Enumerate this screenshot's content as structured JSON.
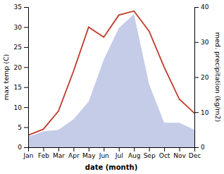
{
  "chart_data": {
    "type": "line",
    "categories": [
      "Jan",
      "Feb",
      "Mar",
      "Apr",
      "May",
      "Jun",
      "Jul",
      "Aug",
      "Sep",
      "Oct",
      "Nov",
      "Dec"
    ],
    "xlabel": "date (month)",
    "ylabel": "max temp (C)",
    "y2label": "med. precipitation (kg/m2)",
    "ylim": [
      0,
      35
    ],
    "yticks": [
      0,
      5,
      10,
      15,
      20,
      25,
      30,
      35
    ],
    "y2lim": [
      0,
      40
    ],
    "y2ticks": [
      0,
      10,
      20,
      30,
      40
    ],
    "grid": false,
    "series": [
      {
        "type": "area",
        "axis": "y2",
        "color": "#c5cce8",
        "values": [
          3.0,
          4.5,
          5.0,
          8.0,
          13.0,
          25.0,
          34.0,
          38.0,
          18.0,
          7.0,
          7.0,
          5.0
        ]
      },
      {
        "type": "line",
        "color": "#c0392b",
        "values": [
          3.0,
          4.5,
          9.0,
          19.0,
          30.0,
          27.5,
          33.0,
          34.0,
          29.0,
          20.0,
          12.0,
          8.5
        ]
      }
    ]
  }
}
